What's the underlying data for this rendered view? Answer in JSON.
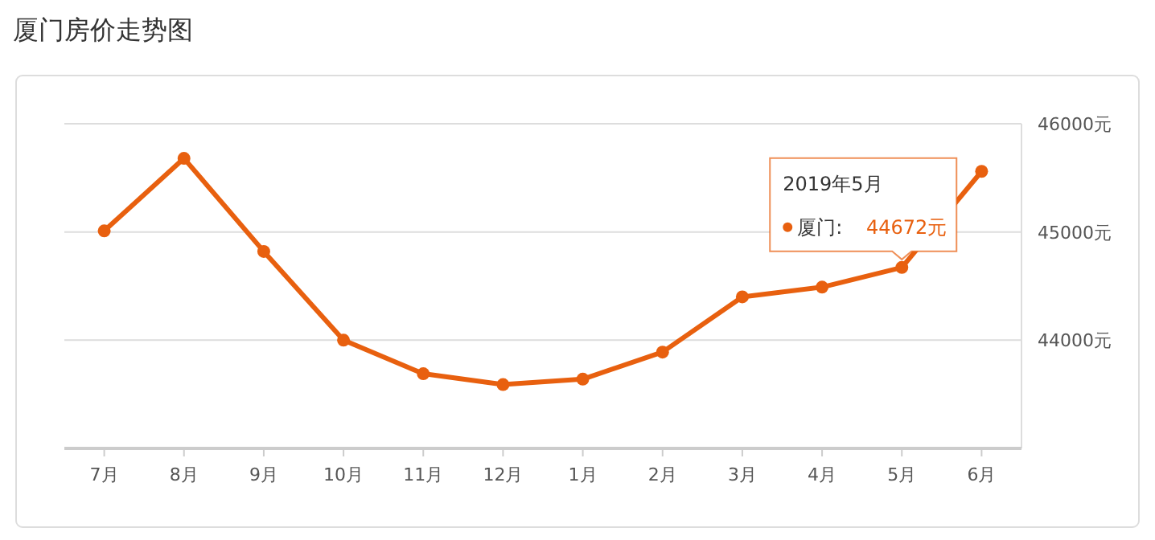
{
  "chart_data": {
    "type": "line",
    "title": "厦门房价走势图",
    "categories": [
      "7月",
      "8月",
      "9月",
      "10月",
      "11月",
      "12月",
      "1月",
      "2月",
      "3月",
      "4月",
      "5月",
      "6月"
    ],
    "series": [
      {
        "name": "厦门:",
        "color": "#e8600f",
        "values": [
          45010,
          45680,
          44820,
          44000,
          43690,
          43590,
          43640,
          43890,
          44400,
          44490,
          44672,
          45560
        ],
        "value_labels": [
          null,
          null,
          null,
          null,
          null,
          null,
          null,
          null,
          null,
          null,
          "44672元",
          null
        ]
      }
    ],
    "annotations": [
      "2019年5月"
    ],
    "ylim": [
      43000,
      46000
    ],
    "yticks": [
      {
        "value": 43000,
        "label": null
      },
      {
        "value": 44000,
        "label": "44000元"
      },
      {
        "value": 45000,
        "label": "45000元"
      },
      {
        "value": 46000,
        "label": "46000元"
      }
    ],
    "grid": "y",
    "marker": "circle",
    "line_style": "solid"
  }
}
